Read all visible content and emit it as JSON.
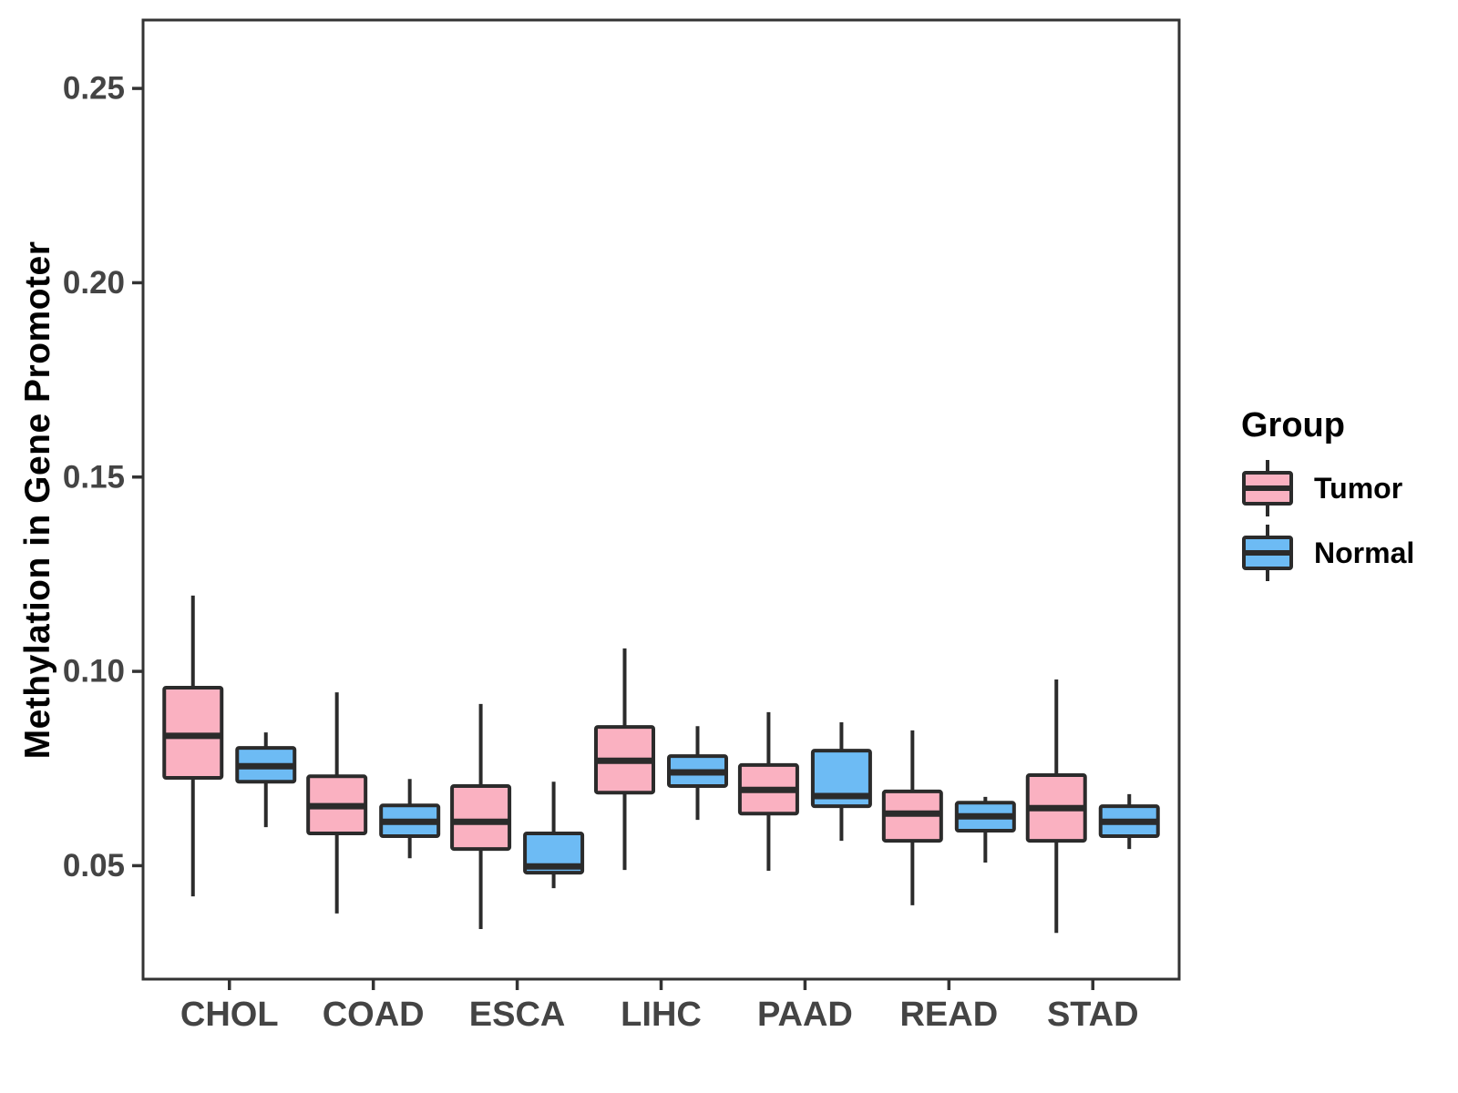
{
  "chart_data": {
    "type": "boxplot",
    "title": "",
    "xlabel": "",
    "ylabel": "Methylation in Gene Promoter",
    "categories": [
      "CHOL",
      "COAD",
      "ESCA",
      "LIHC",
      "PAAD",
      "READ",
      "STAD"
    ],
    "ylim": [
      0.0208,
      0.2676
    ],
    "y_ticks": [
      {
        "value": 0.05,
        "label": "0.05"
      },
      {
        "value": 0.1,
        "label": "0.10"
      },
      {
        "value": 0.15,
        "label": "0.15"
      },
      {
        "value": 0.2,
        "label": "0.20"
      },
      {
        "value": 0.25,
        "label": "0.25"
      }
    ],
    "grid": "off",
    "legend_position": "right",
    "colors": {
      "tumor_fill": "#FAB1C1",
      "normal_fill": "#6DBBF4",
      "box_stroke": "#2B2B2B",
      "panel_border": "#333333",
      "axis_text": "#444444",
      "panel_background": "#FFFFFF"
    },
    "legend": {
      "title": "Group",
      "entries": [
        {
          "label": "Tumor",
          "color": "#FAB1C1"
        },
        {
          "label": "Normal",
          "color": "#6DBBF4"
        }
      ]
    },
    "series": [
      {
        "name": "Tumor",
        "color": "#FAB1C1",
        "boxes": [
          {
            "category": "CHOL",
            "whislo": 0.0421,
            "q1": 0.0726,
            "med": 0.0834,
            "q3": 0.0958,
            "whishi": 0.1195
          },
          {
            "category": "COAD",
            "whislo": 0.0377,
            "q1": 0.0583,
            "med": 0.0653,
            "q3": 0.073,
            "whishi": 0.0946
          },
          {
            "category": "ESCA",
            "whislo": 0.0337,
            "q1": 0.0543,
            "med": 0.0613,
            "q3": 0.0705,
            "whishi": 0.0916
          },
          {
            "category": "LIHC",
            "whislo": 0.0489,
            "q1": 0.0688,
            "med": 0.077,
            "q3": 0.0857,
            "whishi": 0.1059
          },
          {
            "category": "PAAD",
            "whislo": 0.0487,
            "q1": 0.0634,
            "med": 0.0695,
            "q3": 0.0759,
            "whishi": 0.0895
          },
          {
            "category": "READ",
            "whislo": 0.0398,
            "q1": 0.0564,
            "med": 0.0634,
            "q3": 0.0691,
            "whishi": 0.0848
          },
          {
            "category": "STAD",
            "whislo": 0.0327,
            "q1": 0.0564,
            "med": 0.0648,
            "q3": 0.0733,
            "whishi": 0.0979
          }
        ]
      },
      {
        "name": "Normal",
        "color": "#6DBBF4",
        "boxes": [
          {
            "category": "CHOL",
            "whislo": 0.0599,
            "q1": 0.0716,
            "med": 0.0756,
            "q3": 0.0803,
            "whishi": 0.0843
          },
          {
            "category": "COAD",
            "whislo": 0.0519,
            "q1": 0.0576,
            "med": 0.0613,
            "q3": 0.0655,
            "whishi": 0.0723
          },
          {
            "category": "ESCA",
            "whislo": 0.0442,
            "q1": 0.0482,
            "med": 0.0498,
            "q3": 0.0583,
            "whishi": 0.0716
          },
          {
            "category": "LIHC",
            "whislo": 0.0618,
            "q1": 0.0705,
            "med": 0.074,
            "q3": 0.0782,
            "whishi": 0.0859
          },
          {
            "category": "PAAD",
            "whislo": 0.0564,
            "q1": 0.0653,
            "med": 0.0679,
            "q3": 0.0796,
            "whishi": 0.0869
          },
          {
            "category": "READ",
            "whislo": 0.0508,
            "q1": 0.059,
            "med": 0.0627,
            "q3": 0.0662,
            "whishi": 0.0677
          },
          {
            "category": "STAD",
            "whislo": 0.0543,
            "q1": 0.0576,
            "med": 0.0613,
            "q3": 0.0653,
            "whishi": 0.0684
          }
        ]
      }
    ]
  }
}
